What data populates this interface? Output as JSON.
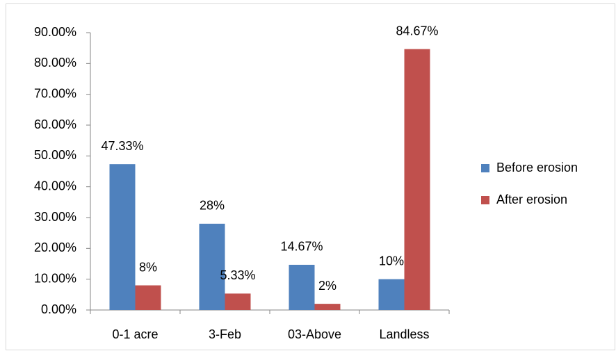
{
  "chart_data": {
    "type": "bar",
    "categories": [
      "0-1 acre",
      "3-Feb",
      "03-Above",
      "Landless"
    ],
    "series": [
      {
        "name": "Before erosion",
        "color": "#4f81bd",
        "values": [
          47.33,
          28,
          14.67,
          10
        ],
        "value_labels": [
          "47.33%",
          "28%",
          "14.67%",
          "10%"
        ]
      },
      {
        "name": "After erosion",
        "color": "#c0504d",
        "values": [
          8,
          5.33,
          2,
          84.67
        ],
        "value_labels": [
          "8%",
          "5.33%",
          "2%",
          "84.67%"
        ]
      }
    ],
    "ylim": [
      0,
      90
    ],
    "yticks": [
      {
        "value": 0,
        "label": "0.00%"
      },
      {
        "value": 10,
        "label": "10.00%"
      },
      {
        "value": 20,
        "label": "20.00%"
      },
      {
        "value": 30,
        "label": "30.00%"
      },
      {
        "value": 40,
        "label": "40.00%"
      },
      {
        "value": 50,
        "label": "50.00%"
      },
      {
        "value": 60,
        "label": "60.00%"
      },
      {
        "value": 70,
        "label": "70.00%"
      },
      {
        "value": 80,
        "label": "80.00%"
      },
      {
        "value": 90,
        "label": "90.00%"
      }
    ],
    "legend": "right",
    "grid": false
  }
}
